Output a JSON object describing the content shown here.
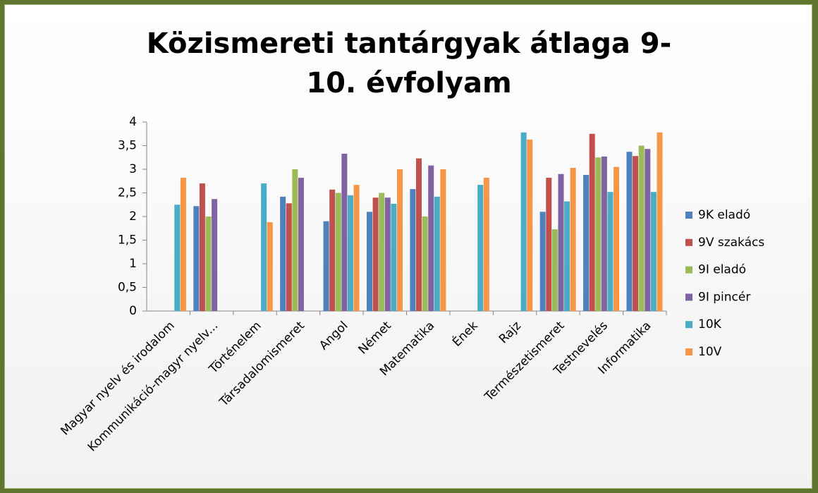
{
  "chart_data": {
    "type": "bar",
    "title": "Közismereti tantárgyak átlaga 9-10. évfolyam",
    "categories": [
      "Magyar nyelv és irodalom",
      "Kommunikáció-magyr nyelv...",
      "Történelem",
      "Társadalomismeret",
      "Angol",
      "Német",
      "Matematika",
      "Ének",
      "Rajz",
      "Természetismeret",
      "Testnevelés",
      "Informatika"
    ],
    "series": [
      {
        "name": "9K eladó",
        "color": "#4f81bd",
        "values": [
          null,
          2.22,
          null,
          2.42,
          1.9,
          2.1,
          2.58,
          null,
          null,
          2.1,
          2.88,
          3.37
        ]
      },
      {
        "name": "9V szakács",
        "color": "#c0504d",
        "values": [
          null,
          2.7,
          null,
          2.28,
          2.57,
          2.4,
          3.23,
          null,
          null,
          2.82,
          3.75,
          3.28
        ]
      },
      {
        "name": "9I eladó",
        "color": "#9bbb59",
        "values": [
          null,
          2.0,
          null,
          3.0,
          2.5,
          2.5,
          2.0,
          null,
          null,
          1.73,
          3.25,
          3.5
        ]
      },
      {
        "name": "9I pincér",
        "color": "#8064a2",
        "values": [
          null,
          2.37,
          null,
          2.82,
          3.33,
          2.4,
          3.08,
          null,
          null,
          2.9,
          3.27,
          3.43
        ]
      },
      {
        "name": "10K",
        "color": "#4bacc6",
        "values": [
          2.25,
          null,
          2.7,
          null,
          2.45,
          2.27,
          2.42,
          2.67,
          3.78,
          2.32,
          2.52,
          2.52
        ]
      },
      {
        "name": "10V",
        "color": "#f79646",
        "values": [
          2.82,
          null,
          1.88,
          null,
          2.67,
          3.0,
          3.0,
          2.82,
          3.63,
          3.03,
          3.05,
          3.78
        ]
      }
    ],
    "ylim": [
      0,
      4
    ],
    "yticks": [
      0,
      {
        "value": 0.5,
        "label": "0,5"
      },
      1,
      {
        "value": 1.5,
        "label": "1,5"
      },
      2,
      {
        "value": 2.5,
        "label": "2,5"
      },
      3,
      {
        "value": 3.5,
        "label": "3,5"
      },
      4
    ],
    "grid": false,
    "legend": "right"
  }
}
